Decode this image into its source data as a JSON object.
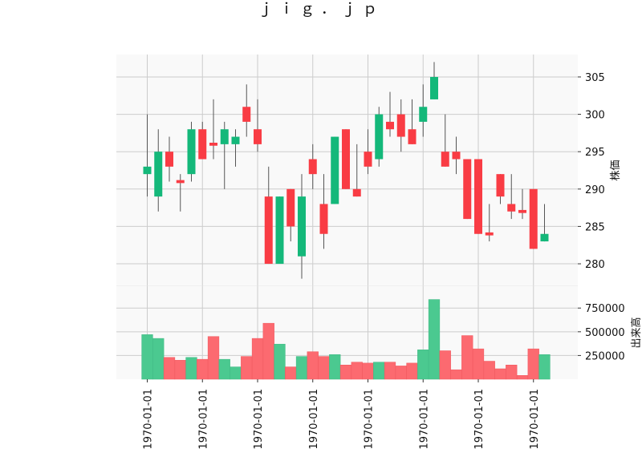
{
  "chart_data": {
    "type": "candlestick",
    "title": "ｊｉｇ．ｊｐ",
    "colors": {
      "up": "#14b87a",
      "down": "#f93c44",
      "up_volume": "#4bc990",
      "down_volume": "#fc6a70",
      "grid": "#cccccc",
      "panel_bg": "#f9f9f9"
    },
    "x_tick_labels": [
      "1970-01-01",
      "1970-01-01",
      "1970-01-01",
      "1970-01-01",
      "1970-01-01",
      "1970-01-01",
      "1970-01-01",
      "1970-01-01"
    ],
    "price_panel": {
      "ylabel": "株価",
      "ylim": [
        277,
        308
      ],
      "ticks": [
        280,
        285,
        290,
        295,
        300,
        305
      ],
      "grid": true
    },
    "volume_panel": {
      "ylabel": "出来高",
      "ylim": [
        0,
        980000
      ],
      "ticks": [
        250000,
        500000,
        750000
      ],
      "tick_labels": [
        "250000",
        "500000",
        "750000"
      ],
      "grid": true
    },
    "candles": [
      {
        "open": 292,
        "high": 300,
        "low": 289,
        "close": 293,
        "volume": 470000
      },
      {
        "open": 289,
        "high": 298,
        "low": 287,
        "close": 295,
        "volume": 430000
      },
      {
        "open": 295,
        "high": 297,
        "low": 291,
        "close": 293,
        "volume": 230000
      },
      {
        "open": 291.2,
        "high": 292,
        "low": 287,
        "close": 290.8,
        "volume": 200000
      },
      {
        "open": 292,
        "high": 299,
        "low": 291,
        "close": 298,
        "volume": 230000
      },
      {
        "open": 298,
        "high": 299,
        "low": 294,
        "close": 294,
        "volume": 210000
      },
      {
        "open": 296.2,
        "high": 302,
        "low": 294,
        "close": 295.8,
        "volume": 450000
      },
      {
        "open": 296,
        "high": 299,
        "low": 290,
        "close": 298,
        "volume": 210000
      },
      {
        "open": 296,
        "high": 298,
        "low": 293,
        "close": 297,
        "volume": 130000
      },
      {
        "open": 301,
        "high": 304,
        "low": 297,
        "close": 299,
        "volume": 240000
      },
      {
        "open": 298,
        "high": 302,
        "low": 295,
        "close": 296,
        "volume": 430000
      },
      {
        "open": 289,
        "high": 293,
        "low": 280,
        "close": 280,
        "volume": 590000
      },
      {
        "open": 280,
        "high": 289,
        "low": 280,
        "close": 289,
        "volume": 370000
      },
      {
        "open": 290,
        "high": 290,
        "low": 283,
        "close": 285,
        "volume": 130000
      },
      {
        "open": 281,
        "high": 292,
        "low": 278,
        "close": 289,
        "volume": 240000
      },
      {
        "open": 294,
        "high": 296,
        "low": 290,
        "close": 292,
        "volume": 290000
      },
      {
        "open": 288,
        "high": 292,
        "low": 282,
        "close": 284,
        "volume": 240000
      },
      {
        "open": 288,
        "high": 297,
        "low": 288,
        "close": 297,
        "volume": 260000
      },
      {
        "open": 298,
        "high": 298,
        "low": 290,
        "close": 290,
        "volume": 150000
      },
      {
        "open": 290,
        "high": 296,
        "low": 289,
        "close": 289,
        "volume": 180000
      },
      {
        "open": 295,
        "high": 298,
        "low": 292,
        "close": 293,
        "volume": 170000
      },
      {
        "open": 294,
        "high": 301,
        "low": 293,
        "close": 300,
        "volume": 180000
      },
      {
        "open": 299,
        "high": 303,
        "low": 297,
        "close": 298,
        "volume": 180000
      },
      {
        "open": 300,
        "high": 302,
        "low": 295,
        "close": 297,
        "volume": 140000
      },
      {
        "open": 298,
        "high": 302,
        "low": 296,
        "close": 296,
        "volume": 170000
      },
      {
        "open": 299,
        "high": 304,
        "low": 297,
        "close": 301,
        "volume": 310000
      },
      {
        "open": 302,
        "high": 307,
        "low": 302,
        "close": 305,
        "volume": 840000
      },
      {
        "open": 295,
        "high": 300,
        "low": 293,
        "close": 293,
        "volume": 300000
      },
      {
        "open": 295,
        "high": 297,
        "low": 292,
        "close": 294,
        "volume": 100000
      },
      {
        "open": 294,
        "high": 294,
        "low": 286,
        "close": 286,
        "volume": 460000
      },
      {
        "open": 294,
        "high": 294,
        "low": 284,
        "close": 284,
        "volume": 320000
      },
      {
        "open": 284.2,
        "high": 288,
        "low": 283,
        "close": 283.8,
        "volume": 190000
      },
      {
        "open": 292,
        "high": 292,
        "low": 288,
        "close": 289,
        "volume": 110000
      },
      {
        "open": 288,
        "high": 292,
        "low": 286,
        "close": 287,
        "volume": 150000
      },
      {
        "open": 287.2,
        "high": 290,
        "low": 286,
        "close": 286.8,
        "volume": 40000
      },
      {
        "open": 290,
        "high": 290,
        "low": 282,
        "close": 282,
        "volume": 320000
      },
      {
        "open": 283,
        "high": 288,
        "low": 283,
        "close": 284,
        "volume": 260000
      }
    ]
  }
}
